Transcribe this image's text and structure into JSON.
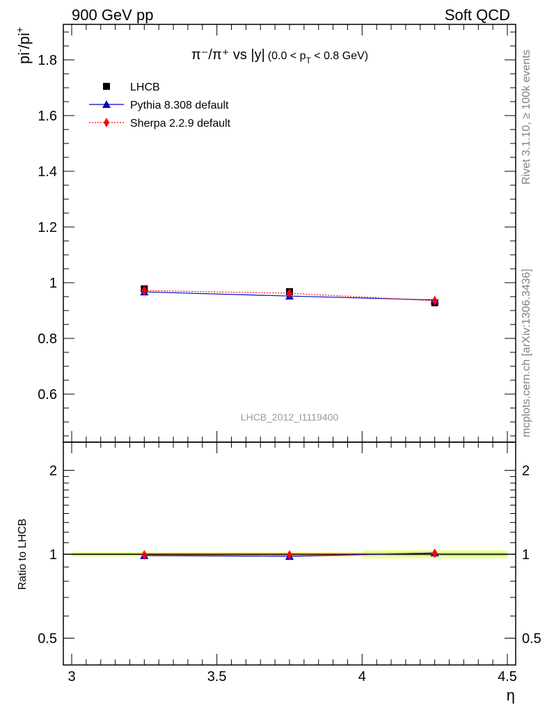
{
  "header": {
    "left": "900 GeV pp",
    "right": "Soft QCD"
  },
  "side_labels": {
    "rivet": "Rivet 3.1.10, ≥ 100k events",
    "mcplots": "mcplots.cern.ch [arXiv:1306.3436]"
  },
  "chart_data": [
    {
      "type": "scatter",
      "title": "π⁻/π⁺ vs |y| (0.0 < pT < 0.8 GeV)",
      "title_parts": {
        "main": "π⁻/π⁺ vs |y|",
        "cut_open": "(0.0 < p",
        "cut_sub": "T",
        "cut_close": " < 0.8 GeV)"
      },
      "ylabel": "pi⁻/pi⁺",
      "ylabel_parts": {
        "base1": "pi",
        "sup1": "-",
        "base2": "/pi",
        "sup2": "+"
      },
      "watermark": "LHCB_2012_I1119400",
      "xlim": [
        3.0,
        4.5
      ],
      "ylim": [
        0.45,
        1.93
      ],
      "grid": false,
      "legend_position": "top-left",
      "y_tick_labels": [
        "0.6",
        "0.8",
        "1",
        "1.2",
        "1.4",
        "1.6",
        "1.8"
      ],
      "y_tick_values": [
        0.6,
        0.8,
        1.0,
        1.2,
        1.4,
        1.6,
        1.8
      ],
      "series": [
        {
          "name": "LHCB",
          "marker": "square",
          "color": "#000000",
          "x": [
            3.25,
            3.75,
            4.25
          ],
          "y": [
            0.978,
            0.968,
            0.928
          ],
          "yerr": [
            0.01,
            0.01,
            0.01
          ]
        },
        {
          "name": "Pythia 8.308 default",
          "marker": "triangle",
          "color": "#0000cc",
          "line": "solid",
          "x": [
            3.25,
            3.75,
            4.25
          ],
          "y": [
            0.967,
            0.952,
            0.938
          ]
        },
        {
          "name": "Sherpa 2.2.9 default",
          "marker": "diamond",
          "color": "#ff0000",
          "line": "dotted",
          "x": [
            3.25,
            3.75,
            4.25
          ],
          "y": [
            0.972,
            0.962,
            0.935
          ]
        }
      ]
    },
    {
      "type": "scatter",
      "ylabel": "Ratio to LHCB",
      "xlabel": "η",
      "xlim": [
        3.0,
        4.5
      ],
      "ylim": [
        0.35,
        2.3
      ],
      "grid": false,
      "x_tick_labels": [
        "3",
        "3.5",
        "4",
        "4.5"
      ],
      "x_tick_values": [
        3.0,
        3.5,
        4.0,
        4.5
      ],
      "y_tick_labels": [
        "0.5",
        "1",
        "2"
      ],
      "y_tick_values": [
        0.5,
        1.0,
        2.0
      ],
      "bands": [
        {
          "x": [
            3.0,
            3.5
          ],
          "inner": [
            0.99,
            1.01
          ],
          "outer": [
            0.98,
            1.02
          ]
        },
        {
          "x": [
            3.5,
            4.0
          ],
          "inner": [
            0.99,
            1.01
          ],
          "outer": [
            0.98,
            1.02
          ]
        },
        {
          "x": [
            4.0,
            4.5
          ],
          "inner": [
            0.985,
            1.015
          ],
          "outer": [
            0.965,
            1.035
          ]
        }
      ],
      "series": [
        {
          "name": "Pythia 8.308 default",
          "marker": "triangle",
          "color": "#0000cc",
          "line": "solid",
          "x": [
            3.25,
            3.75,
            4.25
          ],
          "y": [
            0.989,
            0.983,
            1.011
          ]
        },
        {
          "name": "Sherpa 2.2.9 default",
          "marker": "diamond",
          "color": "#ff0000",
          "line": "dotted",
          "x": [
            3.25,
            3.75,
            4.25
          ],
          "y": [
            0.994,
            0.994,
            1.008
          ]
        }
      ]
    }
  ],
  "colors": {
    "band_outer": "#f2ffa0",
    "band_inner": "#b8f58a",
    "watermark": "#999999",
    "side_label": "#808080"
  }
}
